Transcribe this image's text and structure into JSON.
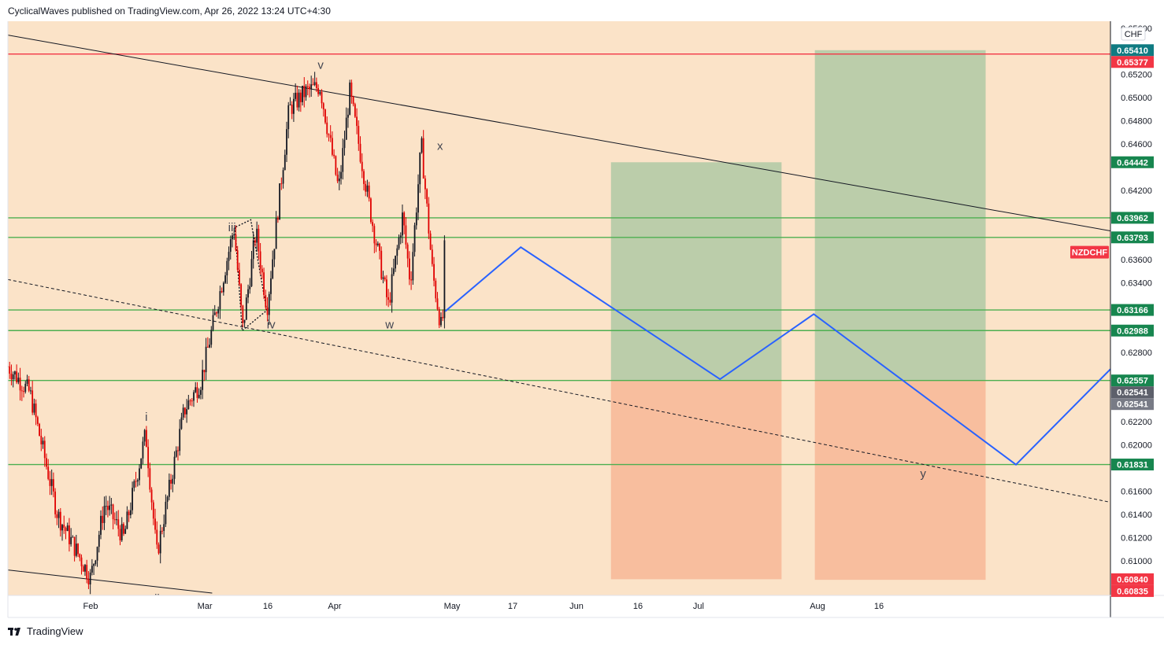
{
  "header": {
    "text": "CyclicalWaves published on TradingView.com, Apr 26, 2022 13:24 UTC+4:30"
  },
  "footer": {
    "brand": "TradingView"
  },
  "colors": {
    "background": "#fbe3c8",
    "candle_down": "#e00000",
    "candle_up": "#131722",
    "support_line": "#4caf50",
    "resistance_line": "#f23645",
    "projection": "#2962ff",
    "target_zone": "#a5c6a0",
    "stop_zone": "#f7b797",
    "badge_green": "#17864f",
    "badge_red": "#f23645",
    "badge_gray": "#787b86"
  },
  "chart_data": {
    "type": "candlestick",
    "symbol": "NZDCHF",
    "currency": "CHF",
    "x_ticks": [
      "Feb",
      "Mar",
      "16",
      "Apr",
      "May",
      "17",
      "Jun",
      "16",
      "Jul",
      "Aug",
      "16"
    ],
    "y_ticks": [
      "0.65600",
      "0.65200",
      "0.65000",
      "0.64800",
      "0.64600",
      "0.64200",
      "0.63600",
      "0.63400",
      "0.62800",
      "0.62200",
      "0.62000",
      "0.61600",
      "0.61400",
      "0.61200",
      "0.61000"
    ],
    "ylim": [
      0.607,
      0.6566
    ],
    "horizontal_levels": [
      {
        "price": 0.65377,
        "label": "0.65377",
        "kind": "resistance"
      },
      {
        "price": 0.63962,
        "label": "0.63962",
        "kind": "support"
      },
      {
        "price": 0.63793,
        "label": "0.63793",
        "kind": "support"
      },
      {
        "price": 0.63166,
        "label": "0.63166",
        "kind": "support"
      },
      {
        "price": 0.62988,
        "label": "0.62988",
        "kind": "support"
      },
      {
        "price": 0.62557,
        "label": "0.62557",
        "kind": "support"
      },
      {
        "price": 0.61831,
        "label": "0.61831",
        "kind": "support"
      }
    ],
    "price_badges": [
      {
        "price": 0.6541,
        "label": "0.65410",
        "kind": "teal"
      },
      {
        "price": 0.65377,
        "label": "0.65377",
        "kind": "red"
      },
      {
        "price": 0.64442,
        "label": "0.64442",
        "kind": "green"
      },
      {
        "price": 0.63962,
        "label": "0.63962",
        "kind": "green"
      },
      {
        "price": 0.63793,
        "label": "0.63793",
        "kind": "green"
      },
      {
        "price": 0.63166,
        "label": "0.63166",
        "kind": "green"
      },
      {
        "price": 0.62988,
        "label": "0.62988",
        "kind": "green"
      },
      {
        "price": 0.62557,
        "label": "0.62557",
        "kind": "green"
      },
      {
        "price": 0.62541,
        "label": "0.62541",
        "kind": "darkgray"
      },
      {
        "price": 0.62541,
        "label": "0.62541",
        "kind": "gray"
      },
      {
        "price": 0.61831,
        "label": "0.61831",
        "kind": "green"
      },
      {
        "price": 0.6084,
        "label": "0.60840",
        "kind": "red"
      },
      {
        "price": 0.60835,
        "label": "0.60835",
        "kind": "red"
      }
    ],
    "symbol_badge": {
      "label": "NZDCHF",
      "price": 0.63665
    },
    "wave_labels": [
      "i",
      "ii",
      "iii",
      "iv",
      "v",
      "w",
      "x",
      "y"
    ],
    "wave_label_prices": [
      0.62208,
      0.6064,
      0.63845,
      0.63006,
      0.6525,
      0.63006,
      0.64548,
      0.6172
    ],
    "wave_label_x": [
      0.1256,
      0.1353,
      0.2033,
      0.2387,
      0.2837,
      0.3462,
      0.392,
      0.8301
    ],
    "candles": {
      "start_price": 0.6268,
      "count": 250
    },
    "projection_path_prices": [
      0.63155,
      0.63708,
      0.62568,
      0.6313,
      0.6183,
      0.62655
    ],
    "projection_path_x": [
      0.3967,
      0.4652,
      0.6459,
      0.7309,
      0.9143,
      1.0
    ],
    "zones": [
      {
        "label": "target-1",
        "x": [
          0.547,
          0.7017
        ],
        "top": 0.64442,
        "entry": 0.62557,
        "bottom": 0.6084
      },
      {
        "label": "target-2",
        "x": [
          0.7319,
          0.8868
        ],
        "top": 0.6541,
        "entry": 0.62557,
        "bottom": 0.60835
      }
    ],
    "trendlines": [
      {
        "kind": "solid",
        "x": [
          0.0,
          1.0
        ],
        "prices": [
          0.6554,
          0.63849
        ]
      },
      {
        "kind": "dashed",
        "x": [
          0.0,
          1.0
        ],
        "prices": [
          0.63429,
          0.61505
        ]
      },
      {
        "kind": "solid",
        "x": [
          0.0,
          0.1853
        ],
        "prices": [
          0.6092,
          0.6072
        ]
      }
    ],
    "diamond_x": [
      0.206,
      0.2125,
      0.2348,
      0.2203
    ],
    "diamond_prices": [
      0.6388,
      0.62988,
      0.63162,
      0.63945
    ]
  }
}
